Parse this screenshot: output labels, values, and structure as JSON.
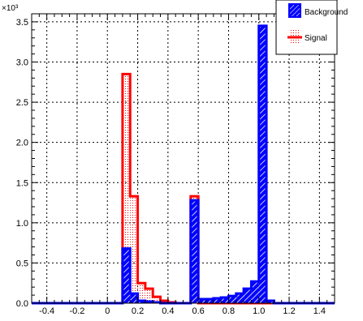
{
  "chart_data": {
    "type": "histogram",
    "title": "",
    "xlabel": "",
    "ylabel": "",
    "y_multiplier": "×10³",
    "xlim": [
      -0.5,
      1.5
    ],
    "ylim": [
      0,
      3.6
    ],
    "x_ticks": [
      "-0.4",
      "-0.2",
      "0",
      "0.2",
      "0.4",
      "0.6",
      "0.8",
      "1.0",
      "1.2",
      "1.4"
    ],
    "x_tick_values": [
      -0.4,
      -0.2,
      0,
      0.2,
      0.4,
      0.6,
      0.8,
      1.0,
      1.2,
      1.4
    ],
    "y_ticks": [
      "0.0",
      "0.5",
      "1.0",
      "1.5",
      "2.0",
      "2.5",
      "3.0",
      "3.5"
    ],
    "y_tick_values": [
      0,
      0.5,
      1.0,
      1.5,
      2.0,
      2.5,
      3.0,
      3.5
    ],
    "grid": true,
    "legend_position": "top-right",
    "bin_edges": [
      -0.5,
      -0.45,
      -0.4,
      -0.35,
      -0.3,
      -0.25,
      -0.2,
      -0.15,
      -0.1,
      -0.05,
      0.0,
      0.05,
      0.1,
      0.15,
      0.2,
      0.25,
      0.3,
      0.35,
      0.4,
      0.45,
      0.5,
      0.55,
      0.6,
      0.65,
      0.7,
      0.75,
      0.8,
      0.85,
      0.9,
      0.95,
      1.0,
      1.05,
      1.1,
      1.15,
      1.2,
      1.25,
      1.3,
      1.35,
      1.4,
      1.45,
      1.5
    ],
    "series": [
      {
        "name": "Signal",
        "color": "#ff0000",
        "style": "dotted-fill",
        "values": [
          0,
          0,
          0,
          0,
          0,
          0,
          0,
          0,
          0,
          0,
          0,
          0,
          2.85,
          1.33,
          0.25,
          0.18,
          0.08,
          0.03,
          0.01,
          0,
          0,
          1.33,
          0,
          0,
          0,
          0,
          0,
          0,
          0,
          0,
          0,
          0,
          0,
          0,
          0,
          0,
          0,
          0,
          0,
          0
        ]
      },
      {
        "name": "Background",
        "color": "#0000ff",
        "style": "hatched",
        "values": [
          0,
          0,
          0,
          0,
          0,
          0,
          0,
          0,
          0,
          0,
          0,
          0,
          0.68,
          0.12,
          0.03,
          0.02,
          0.01,
          0,
          0,
          0,
          0,
          1.28,
          0.05,
          0.05,
          0.06,
          0.07,
          0.09,
          0.12,
          0.18,
          0.27,
          3.45,
          0.03,
          0,
          0,
          0,
          0,
          0,
          0,
          0,
          0
        ]
      }
    ]
  }
}
